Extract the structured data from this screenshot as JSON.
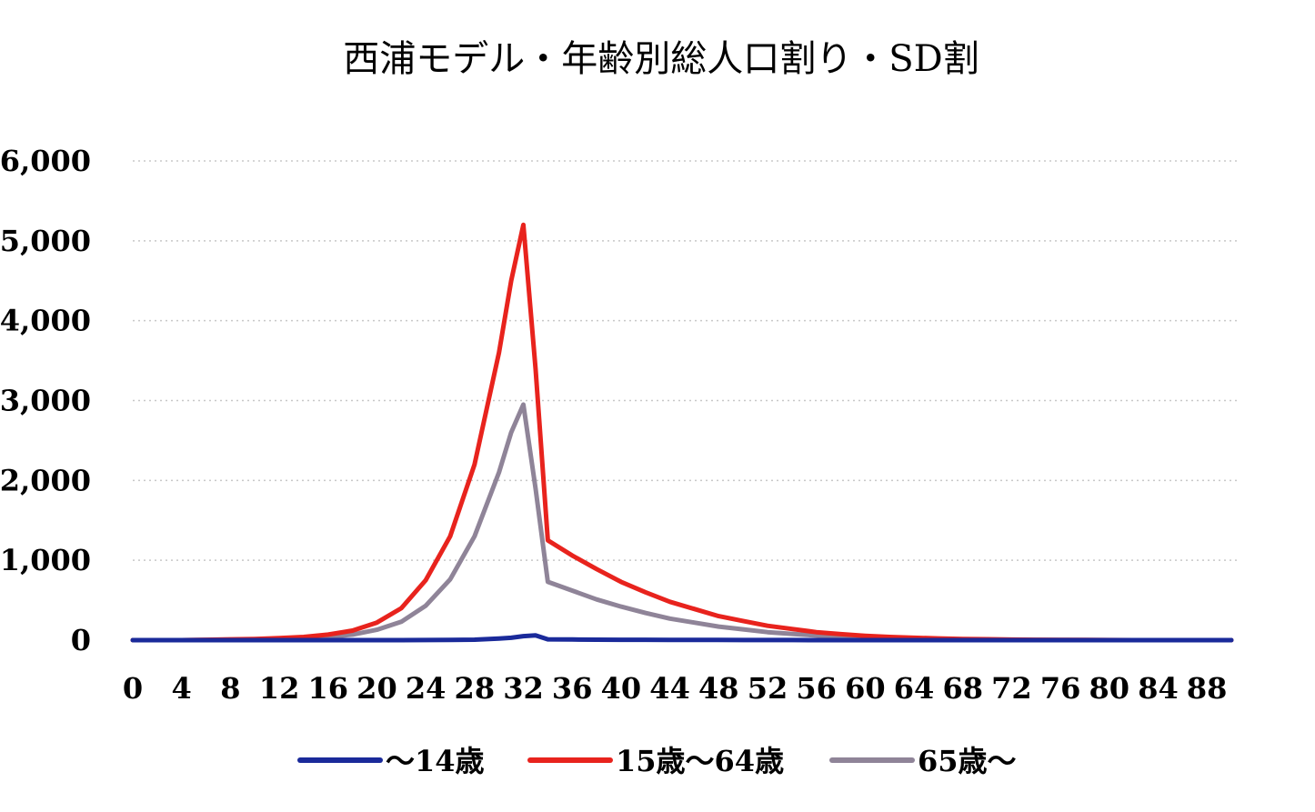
{
  "chart_data": {
    "type": "line",
    "title": "西浦モデル・年齢別総人口割り・SD割",
    "xlabel": "",
    "ylabel": "",
    "ylim": [
      0,
      6000
    ],
    "yticks": [
      "0",
      "1,000",
      "2,000",
      "3,000",
      "4,000",
      "5,000",
      "6,000"
    ],
    "xticks": [
      "0",
      "4",
      "8",
      "12",
      "16",
      "20",
      "24",
      "28",
      "32",
      "36",
      "40",
      "44",
      "48",
      "52",
      "56",
      "60",
      "64",
      "68",
      "72",
      "76",
      "80",
      "84",
      "88"
    ],
    "grid": "horizontal-dotted",
    "legend_position": "bottom",
    "x": [
      0,
      2,
      4,
      6,
      8,
      10,
      12,
      14,
      16,
      18,
      20,
      22,
      24,
      26,
      28,
      30,
      31,
      32,
      33,
      34,
      36,
      38,
      40,
      42,
      44,
      46,
      48,
      50,
      52,
      54,
      56,
      58,
      60,
      62,
      64,
      66,
      68,
      70,
      72,
      74,
      76,
      78,
      80,
      82,
      84,
      86,
      88,
      90
    ],
    "series": [
      {
        "name": "～14歳",
        "color": "#1a2a9a",
        "values": [
          0,
          0,
          0,
          0,
          0,
          0,
          0,
          0,
          0,
          0,
          0,
          0,
          1,
          3,
          6,
          20,
          30,
          50,
          60,
          10,
          8,
          6,
          5,
          4,
          3,
          2,
          2,
          1,
          1,
          1,
          0,
          0,
          0,
          0,
          0,
          0,
          0,
          0,
          0,
          0,
          0,
          0,
          0,
          0,
          0,
          0,
          0,
          0
        ]
      },
      {
        "name": "15歳～64歳",
        "color": "#e8231d",
        "values": [
          0,
          0,
          0,
          5,
          10,
          15,
          25,
          40,
          70,
          120,
          220,
          400,
          750,
          1300,
          2200,
          3600,
          4500,
          5200,
          3400,
          1250,
          1060,
          890,
          730,
          600,
          480,
          390,
          300,
          240,
          180,
          140,
          100,
          75,
          55,
          40,
          30,
          22,
          15,
          11,
          7,
          5,
          3,
          2,
          1,
          0,
          0,
          0,
          0,
          0
        ]
      },
      {
        "name": "65歳～",
        "color": "#8f8498",
        "values": [
          0,
          0,
          0,
          3,
          5,
          8,
          12,
          22,
          40,
          70,
          130,
          230,
          430,
          760,
          1300,
          2100,
          2600,
          2950,
          1900,
          730,
          620,
          510,
          420,
          340,
          270,
          220,
          170,
          135,
          100,
          78,
          58,
          42,
          30,
          22,
          16,
          12,
          8,
          6,
          4,
          3,
          2,
          1,
          0,
          0,
          0,
          0,
          0,
          0
        ]
      }
    ]
  }
}
